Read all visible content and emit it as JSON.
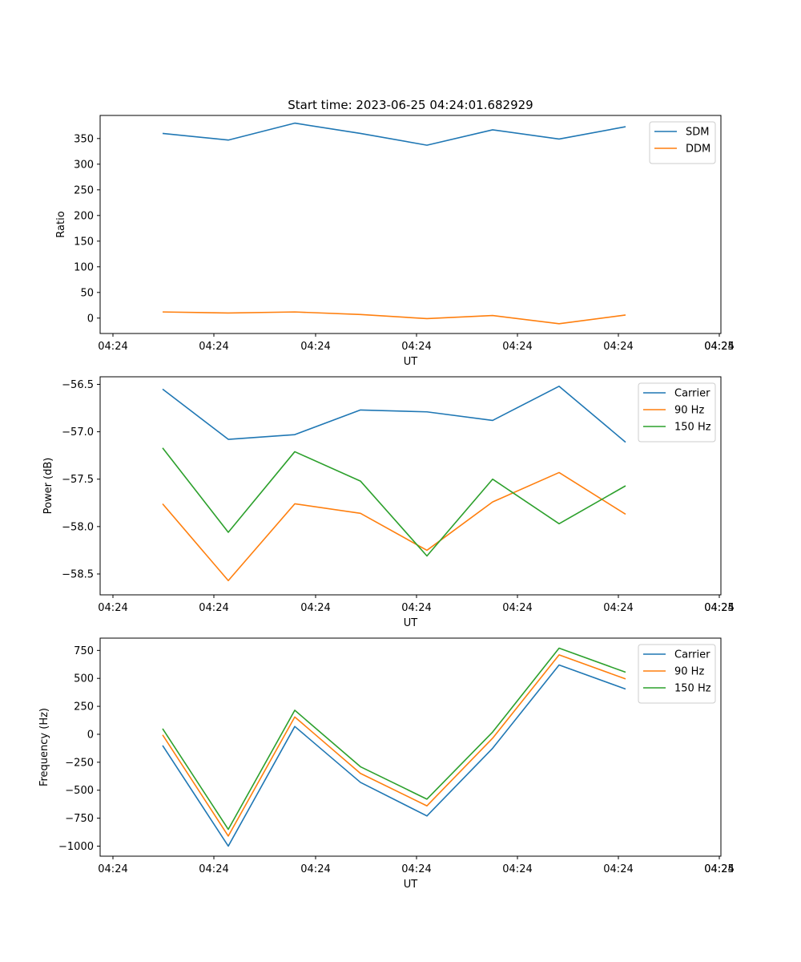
{
  "chart_data": [
    {
      "type": "line",
      "title": "Start time: 2023-06-25 04:24:01.682929",
      "xlabel": "UT",
      "ylabel": "Ratio",
      "x_tick_labels": [
        "04:24",
        "04:24",
        "04:24",
        "04:24",
        "04:24",
        "04:24",
        "04:24",
        "04:25"
      ],
      "y_ticks": [
        0,
        50,
        100,
        150,
        200,
        250,
        300,
        350
      ],
      "ylim": [
        -30,
        395
      ],
      "grid": false,
      "legend_position": "top-right",
      "series": [
        {
          "name": "SDM",
          "color": "#1f77b4",
          "values": [
            360,
            347,
            380,
            360,
            337,
            367,
            349,
            373
          ]
        },
        {
          "name": "DDM",
          "color": "#ff7f0e",
          "values": [
            12,
            10,
            12,
            7,
            -1,
            5,
            -11,
            6
          ]
        }
      ]
    },
    {
      "type": "line",
      "title": "",
      "xlabel": "UT",
      "ylabel": "Power (dB)",
      "x_tick_labels": [
        "04:24",
        "04:24",
        "04:24",
        "04:24",
        "04:24",
        "04:24",
        "04:24",
        "04:25"
      ],
      "y_ticks": [
        -58.5,
        -58.0,
        -57.5,
        -57.0,
        -56.5
      ],
      "y_tick_labels": [
        "−58.5",
        "−58.0",
        "−57.5",
        "−57.0",
        "−56.5"
      ],
      "ylim": [
        -58.72,
        -56.42
      ],
      "grid": false,
      "legend_position": "top-right",
      "series": [
        {
          "name": "Carrier",
          "color": "#1f77b4",
          "values": [
            -56.55,
            -57.08,
            -57.03,
            -56.77,
            -56.79,
            -56.88,
            -56.52,
            -57.11
          ]
        },
        {
          "name": "90 Hz",
          "color": "#ff7f0e",
          "values": [
            -57.76,
            -58.57,
            -57.76,
            -57.86,
            -58.25,
            -57.74,
            -57.43,
            -57.87
          ]
        },
        {
          "name": "150 Hz",
          "color": "#2ca02c",
          "values": [
            -57.17,
            -58.06,
            -57.21,
            -57.52,
            -58.31,
            -57.5,
            -57.97,
            -57.57
          ]
        }
      ]
    },
    {
      "type": "line",
      "title": "",
      "xlabel": "UT",
      "ylabel": "Frequency (Hz)",
      "x_tick_labels": [
        "04:24",
        "04:24",
        "04:24",
        "04:24",
        "04:24",
        "04:24",
        "04:24",
        "04:25"
      ],
      "y_ticks": [
        -1000,
        -750,
        -500,
        -250,
        0,
        250,
        500,
        750
      ],
      "y_tick_labels": [
        "−1000",
        "−750",
        "−500",
        "−250",
        "0",
        "250",
        "500",
        "750"
      ],
      "ylim": [
        -1090,
        860
      ],
      "grid": false,
      "legend_position": "top-right",
      "series": [
        {
          "name": "Carrier",
          "color": "#1f77b4",
          "values": [
            -100,
            -1000,
            70,
            -430,
            -730,
            -125,
            620,
            405
          ]
        },
        {
          "name": "90 Hz",
          "color": "#ff7f0e",
          "values": [
            -5,
            -910,
            155,
            -350,
            -640,
            -35,
            710,
            495
          ]
        },
        {
          "name": "150 Hz",
          "color": "#2ca02c",
          "values": [
            50,
            -850,
            215,
            -290,
            -580,
            20,
            770,
            555
          ]
        }
      ]
    }
  ]
}
